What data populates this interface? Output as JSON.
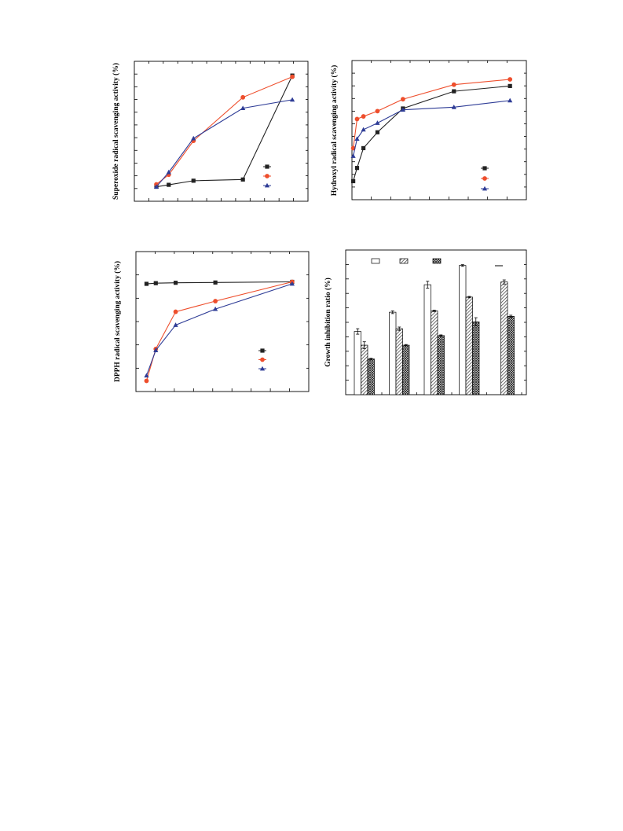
{
  "colors": {
    "series1": "#222222",
    "series2": "#ee4e2c",
    "series3": "#2e3c96",
    "axis": "#000000"
  },
  "chart_data": [
    {
      "type": "line",
      "ylabel": "Superoxide radical scavenging activity (%)",
      "xlim": [
        0,
        11.8
      ],
      "ylim": [
        0,
        55
      ],
      "legend_position": "lower-right",
      "x": [
        0.8,
        1.8,
        3.8,
        7.8,
        11.8
      ],
      "series": [
        {
          "marker": "square",
          "color": "#222222",
          "values": [
            6.0,
            6.8,
            8.5,
            9.0,
            52.0
          ]
        },
        {
          "marker": "circle",
          "color": "#ee4e2c",
          "values": [
            7.0,
            11.0,
            25.0,
            43.0,
            51.5
          ]
        },
        {
          "marker": "triangle",
          "color": "#2e3c96",
          "values": [
            6.0,
            12.0,
            26.0,
            38.5,
            42.0
          ]
        }
      ]
    },
    {
      "type": "line",
      "ylabel": "Hydroxyl radical scavenging activity (%)",
      "xlim": [
        0,
        6.5
      ],
      "ylim": [
        0,
        100
      ],
      "legend_position": "lower-right",
      "x": [
        0.05,
        0.2,
        0.45,
        1.0,
        2.0,
        4.0,
        6.2
      ],
      "series": [
        {
          "marker": "square",
          "color": "#222222",
          "values": [
            14,
            24,
            39,
            51,
            69,
            82,
            86
          ]
        },
        {
          "marker": "circle",
          "color": "#ee4e2c",
          "values": [
            39,
            61,
            63,
            67,
            76,
            87,
            91
          ]
        },
        {
          "marker": "triangle",
          "color": "#2e3c96",
          "values": [
            33,
            46,
            53,
            58,
            68,
            70,
            75
          ]
        }
      ]
    },
    {
      "type": "line",
      "ylabel": "DPPH radical scavenging activity (%)",
      "xlim": [
        0,
        6.2
      ],
      "ylim": [
        0,
        100
      ],
      "legend_position": "lower-right",
      "x": [
        0.4,
        0.75,
        1.5,
        3.0,
        5.9
      ],
      "series": [
        {
          "marker": "square",
          "color": "#222222",
          "values": [
            81,
            81.5,
            81.8,
            82,
            82.5
          ]
        },
        {
          "marker": "circle",
          "color": "#ee4e2c",
          "values": [
            8,
            32,
            60,
            68,
            82.5
          ]
        },
        {
          "marker": "triangle",
          "color": "#2e3c96",
          "values": [
            12,
            31,
            50,
            62,
            81
          ]
        }
      ]
    },
    {
      "type": "bar",
      "ylabel": "Growth inhibition ratio (%)",
      "ylim": [
        0,
        100
      ],
      "legend_position": "top",
      "groups": 5,
      "series": [
        {
          "pattern": "open",
          "values": [
            46,
            60,
            80,
            94,
            null
          ],
          "errors": [
            2,
            1,
            2.5,
            0.6,
            null
          ]
        },
        {
          "pattern": "hatched",
          "values": [
            36,
            48,
            61,
            71,
            82
          ],
          "errors": [
            2.5,
            1.2,
            0.5,
            0.5,
            1.5
          ]
        },
        {
          "pattern": "crosshatched",
          "values": [
            26,
            36,
            43,
            53,
            57
          ],
          "errors": [
            0.5,
            0.5,
            0.5,
            3,
            0.8
          ]
        }
      ]
    }
  ]
}
